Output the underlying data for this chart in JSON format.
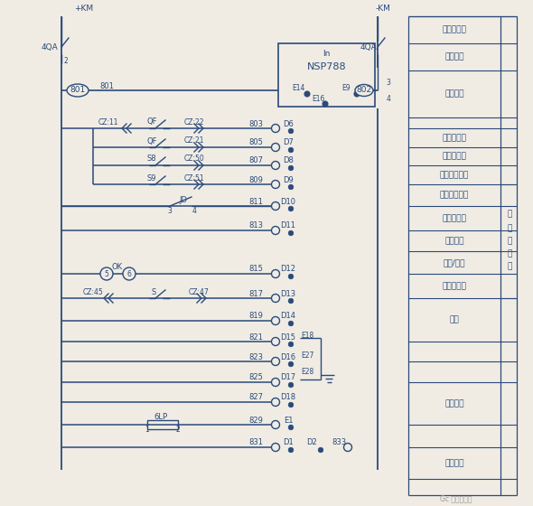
{
  "bg_color": "#f0ece4",
  "line_color": "#2a4a7a",
  "text_color": "#2a4a7a",
  "fig_width": 5.9,
  "fig_height": 5.6,
  "right_labels": [
    [
      "信号小母线",
      1
    ],
    [
      "保护跳闸",
      1
    ],
    [
      "装置电源",
      2
    ],
    [
      "",
      1
    ],
    [
      "断路器分位",
      1
    ],
    [
      "断路器合位",
      1
    ],
    [
      "手车实装位置",
      1
    ],
    [
      "手车工作位置",
      1
    ],
    [
      "接地刀位置",
      1
    ],
    [
      "遥信备用",
      1
    ],
    [
      "远方/就地",
      1
    ],
    [
      "弹簧未储能",
      1
    ],
    [
      "备用",
      1
    ],
    [
      "",
      1
    ],
    [
      "",
      1
    ],
    [
      "遥信备用",
      3
    ],
    [
      "",
      1
    ],
    [
      "置检修态",
      2
    ],
    [
      "",
      1
    ]
  ]
}
